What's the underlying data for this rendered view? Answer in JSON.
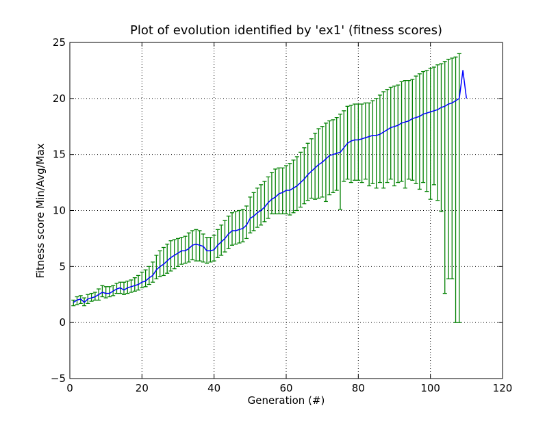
{
  "chart_data": {
    "type": "line",
    "title": "Plot of evolution identified by 'ex1' (fitness scores)",
    "xlabel": "Generation (#)",
    "ylabel": "Fitness score Min/Avg/Max",
    "xlim": [
      0,
      120
    ],
    "ylim": [
      -5,
      25
    ],
    "xticks": [
      0,
      20,
      40,
      60,
      80,
      100,
      120
    ],
    "yticks": [
      -5,
      0,
      5,
      10,
      15,
      20,
      25
    ],
    "ytick_labels": [
      "−5",
      "0",
      "5",
      "10",
      "15",
      "20",
      "25"
    ],
    "grid": true,
    "series": [
      {
        "color": "#0000ff",
        "line_points": [
          [
            1,
            1.8
          ],
          [
            2,
            2.0
          ],
          [
            3,
            2.1
          ],
          [
            4,
            1.8
          ],
          [
            5,
            2.1
          ],
          [
            6,
            2.2
          ],
          [
            7,
            2.3
          ],
          [
            8,
            2.5
          ],
          [
            9,
            2.7
          ],
          [
            10,
            2.6
          ],
          [
            11,
            2.6
          ],
          [
            12,
            2.8
          ],
          [
            13,
            3.0
          ],
          [
            14,
            3.1
          ],
          [
            15,
            2.9
          ],
          [
            16,
            3.1
          ],
          [
            17,
            3.2
          ],
          [
            18,
            3.3
          ],
          [
            19,
            3.4
          ],
          [
            20,
            3.6
          ],
          [
            21,
            3.7
          ],
          [
            22,
            4.0
          ],
          [
            23,
            4.2
          ],
          [
            24,
            4.7
          ],
          [
            25,
            5.0
          ],
          [
            26,
            5.2
          ],
          [
            27,
            5.5
          ],
          [
            28,
            5.8
          ],
          [
            29,
            6.0
          ],
          [
            30,
            6.2
          ],
          [
            31,
            6.4
          ],
          [
            32,
            6.4
          ],
          [
            33,
            6.6
          ],
          [
            34,
            6.9
          ],
          [
            35,
            7.0
          ],
          [
            36,
            6.9
          ],
          [
            37,
            6.8
          ],
          [
            38,
            6.4
          ],
          [
            39,
            6.4
          ],
          [
            40,
            6.5
          ],
          [
            41,
            6.9
          ],
          [
            42,
            7.2
          ],
          [
            43,
            7.5
          ],
          [
            44,
            7.9
          ],
          [
            45,
            8.2
          ],
          [
            46,
            8.2
          ],
          [
            47,
            8.3
          ],
          [
            48,
            8.4
          ],
          [
            49,
            8.7
          ],
          [
            50,
            9.3
          ],
          [
            51,
            9.5
          ],
          [
            52,
            9.8
          ],
          [
            53,
            10.0
          ],
          [
            54,
            10.3
          ],
          [
            55,
            10.7
          ],
          [
            56,
            11.0
          ],
          [
            57,
            11.2
          ],
          [
            58,
            11.5
          ],
          [
            59,
            11.6
          ],
          [
            60,
            11.8
          ],
          [
            61,
            11.8
          ],
          [
            62,
            12.0
          ],
          [
            63,
            12.2
          ],
          [
            64,
            12.5
          ],
          [
            65,
            12.8
          ],
          [
            66,
            13.2
          ],
          [
            67,
            13.5
          ],
          [
            68,
            13.8
          ],
          [
            69,
            14.1
          ],
          [
            70,
            14.3
          ],
          [
            71,
            14.6
          ],
          [
            72,
            14.9
          ],
          [
            73,
            15.0
          ],
          [
            74,
            15.1
          ],
          [
            75,
            15.2
          ],
          [
            76,
            15.6
          ],
          [
            77,
            16.0
          ],
          [
            78,
            16.2
          ],
          [
            79,
            16.3
          ],
          [
            80,
            16.3
          ],
          [
            81,
            16.4
          ],
          [
            82,
            16.5
          ],
          [
            83,
            16.6
          ],
          [
            84,
            16.7
          ],
          [
            85,
            16.7
          ],
          [
            86,
            16.8
          ],
          [
            87,
            17.0
          ],
          [
            88,
            17.2
          ],
          [
            89,
            17.4
          ],
          [
            90,
            17.5
          ],
          [
            91,
            17.6
          ],
          [
            92,
            17.8
          ],
          [
            93,
            17.9
          ],
          [
            94,
            18.0
          ],
          [
            95,
            18.2
          ],
          [
            96,
            18.3
          ],
          [
            97,
            18.4
          ],
          [
            98,
            18.6
          ],
          [
            99,
            18.7
          ],
          [
            100,
            18.8
          ],
          [
            101,
            18.9
          ],
          [
            102,
            19.0
          ],
          [
            103,
            19.2
          ],
          [
            104,
            19.3
          ],
          [
            105,
            19.5
          ],
          [
            106,
            19.6
          ],
          [
            107,
            19.8
          ],
          [
            108,
            20.0
          ],
          [
            109,
            22.5
          ],
          [
            110,
            20.0
          ]
        ]
      },
      {
        "color": "#008000",
        "error_bars": [
          [
            1,
            1.5,
            2.0
          ],
          [
            2,
            1.6,
            2.3
          ],
          [
            3,
            1.7,
            2.4
          ],
          [
            4,
            1.5,
            2.2
          ],
          [
            5,
            1.7,
            2.5
          ],
          [
            6,
            1.9,
            2.6
          ],
          [
            7,
            2.0,
            2.7
          ],
          [
            8,
            2.0,
            3.0
          ],
          [
            9,
            2.3,
            3.3
          ],
          [
            10,
            2.2,
            3.2
          ],
          [
            11,
            2.3,
            3.2
          ],
          [
            12,
            2.4,
            3.3
          ],
          [
            13,
            2.6,
            3.5
          ],
          [
            14,
            2.6,
            3.6
          ],
          [
            15,
            2.5,
            3.6
          ],
          [
            16,
            2.6,
            3.7
          ],
          [
            17,
            2.7,
            3.8
          ],
          [
            18,
            2.8,
            4.0
          ],
          [
            19,
            2.9,
            4.2
          ],
          [
            20,
            3.1,
            4.5
          ],
          [
            21,
            3.2,
            4.7
          ],
          [
            22,
            3.4,
            5.0
          ],
          [
            23,
            3.6,
            5.4
          ],
          [
            24,
            3.9,
            6.0
          ],
          [
            25,
            4.1,
            6.4
          ],
          [
            26,
            4.2,
            6.7
          ],
          [
            27,
            4.4,
            7.0
          ],
          [
            28,
            4.6,
            7.3
          ],
          [
            29,
            4.8,
            7.4
          ],
          [
            30,
            5.0,
            7.5
          ],
          [
            31,
            5.2,
            7.6
          ],
          [
            32,
            5.3,
            7.7
          ],
          [
            33,
            5.4,
            8.0
          ],
          [
            34,
            5.6,
            8.2
          ],
          [
            35,
            5.5,
            8.3
          ],
          [
            36,
            5.5,
            8.2
          ],
          [
            37,
            5.4,
            7.9
          ],
          [
            38,
            5.3,
            7.6
          ],
          [
            39,
            5.4,
            7.6
          ],
          [
            40,
            5.5,
            7.8
          ],
          [
            41,
            5.8,
            8.3
          ],
          [
            42,
            6.0,
            8.7
          ],
          [
            43,
            6.3,
            9.1
          ],
          [
            44,
            6.6,
            9.5
          ],
          [
            45,
            6.9,
            9.8
          ],
          [
            46,
            7.0,
            9.9
          ],
          [
            47,
            7.1,
            10.0
          ],
          [
            48,
            7.2,
            10.1
          ],
          [
            49,
            7.5,
            10.4
          ],
          [
            50,
            8.0,
            11.2
          ],
          [
            51,
            8.2,
            11.6
          ],
          [
            52,
            8.5,
            12.0
          ],
          [
            53,
            8.7,
            12.3
          ],
          [
            54,
            9.0,
            12.6
          ],
          [
            55,
            9.3,
            13.0
          ],
          [
            56,
            9.7,
            13.4
          ],
          [
            57,
            9.7,
            13.7
          ],
          [
            58,
            9.7,
            13.8
          ],
          [
            59,
            9.7,
            13.8
          ],
          [
            60,
            9.7,
            14.0
          ],
          [
            61,
            9.6,
            14.2
          ],
          [
            62,
            9.8,
            14.5
          ],
          [
            63,
            10.0,
            14.8
          ],
          [
            64,
            10.3,
            15.2
          ],
          [
            65,
            10.6,
            15.6
          ],
          [
            66,
            10.9,
            16.0
          ],
          [
            67,
            11.1,
            16.4
          ],
          [
            68,
            11.0,
            16.9
          ],
          [
            69,
            11.1,
            17.3
          ],
          [
            70,
            11.2,
            17.5
          ],
          [
            71,
            10.8,
            17.8
          ],
          [
            72,
            11.4,
            18.0
          ],
          [
            73,
            11.6,
            18.1
          ],
          [
            74,
            11.8,
            18.3
          ],
          [
            75,
            10.1,
            18.6
          ],
          [
            76,
            12.6,
            18.9
          ],
          [
            77,
            12.8,
            19.3
          ],
          [
            78,
            12.5,
            19.4
          ],
          [
            79,
            12.7,
            19.5
          ],
          [
            80,
            12.7,
            19.5
          ],
          [
            81,
            12.5,
            19.5
          ],
          [
            82,
            12.8,
            19.6
          ],
          [
            83,
            12.2,
            19.6
          ],
          [
            84,
            12.4,
            19.8
          ],
          [
            85,
            12.0,
            20.0
          ],
          [
            86,
            12.5,
            20.3
          ],
          [
            87,
            12.0,
            20.6
          ],
          [
            88,
            12.5,
            20.8
          ],
          [
            89,
            12.8,
            21.0
          ],
          [
            90,
            12.2,
            21.1
          ],
          [
            91,
            12.5,
            21.2
          ],
          [
            92,
            12.6,
            21.5
          ],
          [
            93,
            12.0,
            21.6
          ],
          [
            94,
            12.8,
            21.6
          ],
          [
            95,
            12.7,
            21.7
          ],
          [
            96,
            12.4,
            22.0
          ],
          [
            97,
            11.9,
            22.2
          ],
          [
            98,
            12.5,
            22.4
          ],
          [
            99,
            11.7,
            22.5
          ],
          [
            100,
            11.0,
            22.7
          ],
          [
            101,
            12.3,
            22.8
          ],
          [
            102,
            10.9,
            23.0
          ],
          [
            103,
            9.9,
            23.1
          ],
          [
            104,
            2.6,
            23.3
          ],
          [
            105,
            3.9,
            23.5
          ],
          [
            106,
            3.9,
            23.6
          ],
          [
            107,
            0.0,
            23.7
          ],
          [
            108,
            0.0,
            24.0
          ]
        ]
      }
    ]
  }
}
